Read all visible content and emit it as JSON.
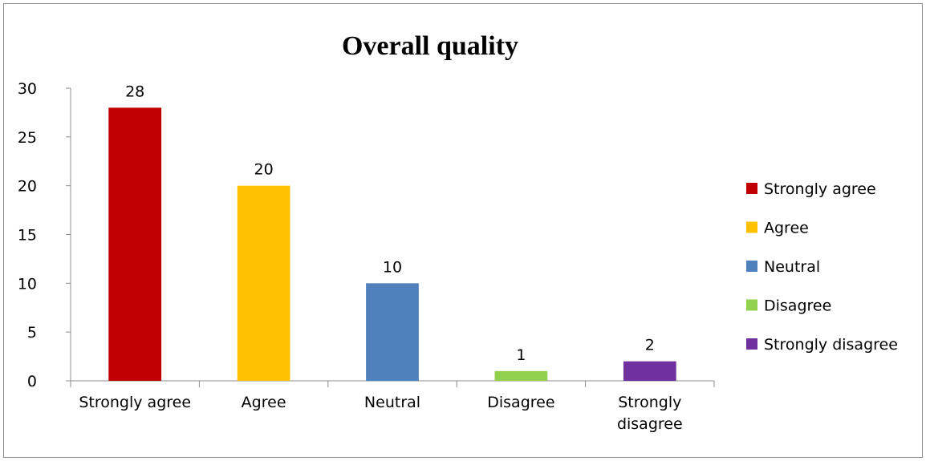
{
  "chart_data": {
    "type": "bar",
    "title": "Overall quality",
    "xlabel": "",
    "ylabel": "",
    "categories": [
      "Strongly agree",
      "Agree",
      "Neutral",
      "Disagree",
      "Strongly disagree"
    ],
    "values": [
      28,
      20,
      10,
      1,
      2
    ],
    "colors": [
      "#c00000",
      "#ffc000",
      "#4f81bd",
      "#92d050",
      "#7030a0"
    ],
    "ylim": [
      0,
      30
    ],
    "yticks": [
      0,
      5,
      10,
      15,
      20,
      25,
      30
    ],
    "grid": false,
    "data_labels": true,
    "legend": {
      "position": "right",
      "entries": [
        "Strongly agree",
        "Agree",
        "Neutral",
        "Disagree",
        "Strongly disagree"
      ]
    }
  }
}
